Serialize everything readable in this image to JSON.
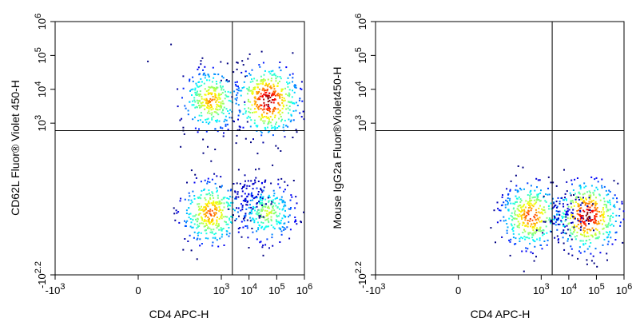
{
  "chart_data": [
    {
      "type": "scatter",
      "subtype": "flow-cytometry-density-dot-plot",
      "title": "",
      "xlabel": "CD4 APC-H",
      "ylabel": "CD62L Fluor® Violet 450-H",
      "x_scale": "biexponential",
      "y_scale": "biexponential",
      "xlim": [
        "-10^3",
        "10^6"
      ],
      "ylim": [
        "-10^2.2",
        "10^6"
      ],
      "x_ticks": [
        {
          "base": "-10",
          "exp": "3"
        },
        {
          "base": "0",
          "exp": ""
        },
        {
          "base": "10",
          "exp": "3"
        },
        {
          "base": "10",
          "exp": "4"
        },
        {
          "base": "10",
          "exp": "5"
        },
        {
          "base": "10",
          "exp": "6"
        }
      ],
      "y_ticks": [
        {
          "base": "-10",
          "exp": "2.2"
        },
        {
          "base": "10",
          "exp": "3"
        },
        {
          "base": "10",
          "exp": "4"
        },
        {
          "base": "10",
          "exp": "5"
        },
        {
          "base": "10",
          "exp": "6"
        }
      ],
      "quadrant_gate": {
        "x": 2500,
        "y": 600
      },
      "populations": [
        {
          "x": 400,
          "y": 5000,
          "relative_density": 0.75
        },
        {
          "x": 400,
          "y": 40,
          "relative_density": 0.8
        },
        {
          "x": 45000,
          "y": 5000,
          "relative_density": 1.0
        },
        {
          "x": 45000,
          "y": 40,
          "relative_density": 0.6
        },
        {
          "x": 10000,
          "y": 100,
          "relative_density": 0.1
        }
      ],
      "grid": false,
      "legend": "none"
    },
    {
      "type": "scatter",
      "subtype": "flow-cytometry-density-dot-plot",
      "title": "",
      "xlabel": "CD4 APC-H",
      "ylabel": "Mouse IgG2a  Fluor®Violet450-H",
      "x_scale": "biexponential",
      "y_scale": "biexponential",
      "xlim": [
        "-10^3",
        "10^6"
      ],
      "ylim": [
        "-10^2.2",
        "10^6"
      ],
      "x_ticks": [
        {
          "base": "-10",
          "exp": "3"
        },
        {
          "base": "0",
          "exp": ""
        },
        {
          "base": "10",
          "exp": "3"
        },
        {
          "base": "10",
          "exp": "4"
        },
        {
          "base": "10",
          "exp": "5"
        },
        {
          "base": "10",
          "exp": "6"
        }
      ],
      "y_ticks": [
        {
          "base": "-10",
          "exp": "2.2"
        },
        {
          "base": "10",
          "exp": "3"
        },
        {
          "base": "10",
          "exp": "4"
        },
        {
          "base": "10",
          "exp": "5"
        },
        {
          "base": "10",
          "exp": "6"
        }
      ],
      "quadrant_gate": {
        "x": 2500,
        "y": 600
      },
      "populations": [
        {
          "x": 400,
          "y": 30,
          "relative_density": 0.85
        },
        {
          "x": 45000,
          "y": 30,
          "relative_density": 1.0
        },
        {
          "x": 8000,
          "y": 40,
          "relative_density": 0.1
        }
      ],
      "grid": false,
      "legend": "none"
    }
  ]
}
